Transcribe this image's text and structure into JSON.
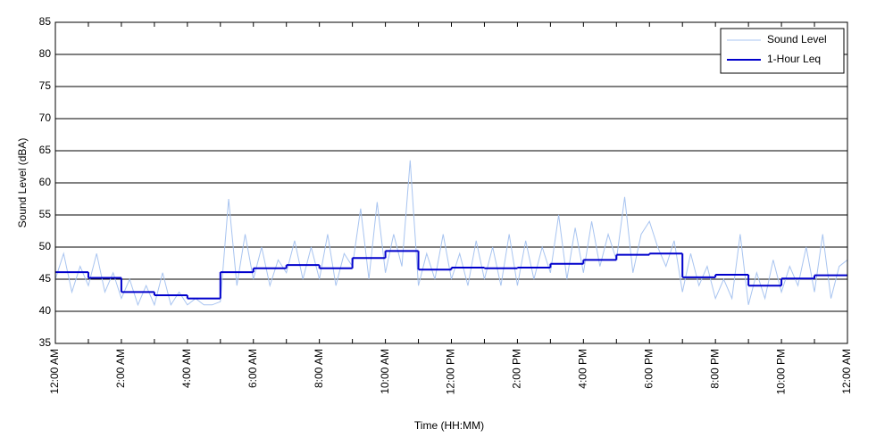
{
  "chart_data": {
    "type": "line",
    "xlabel": "Time (HH:MM)",
    "ylabel": "Sound Level (dBA)",
    "xlim": [
      0,
      24
    ],
    "ylim": [
      35,
      85
    ],
    "xticks": [
      {
        "value": 0,
        "label": "12:00 AM"
      },
      {
        "value": 2,
        "label": "2:00 AM"
      },
      {
        "value": 4,
        "label": "4:00 AM"
      },
      {
        "value": 6,
        "label": "6:00 AM"
      },
      {
        "value": 8,
        "label": "8:00 AM"
      },
      {
        "value": 10,
        "label": "10:00 AM"
      },
      {
        "value": 12,
        "label": "12:00 PM"
      },
      {
        "value": 14,
        "label": "2:00 PM"
      },
      {
        "value": 16,
        "label": "4:00 PM"
      },
      {
        "value": 18,
        "label": "6:00 PM"
      },
      {
        "value": 20,
        "label": "8:00 PM"
      },
      {
        "value": 22,
        "label": "10:00 PM"
      },
      {
        "value": 24,
        "label": "12:00 AM"
      }
    ],
    "xminorticks": [
      1,
      3,
      5,
      7,
      9,
      11,
      13,
      15,
      17,
      19,
      21,
      23
    ],
    "yticks": [
      35,
      40,
      45,
      50,
      55,
      60,
      65,
      70,
      75,
      80,
      85
    ],
    "grid": true,
    "legend": "top-right",
    "series": [
      {
        "name": "Sound Level",
        "color": "#a8c4f0",
        "style": "line",
        "x": [
          0,
          0.25,
          0.5,
          0.75,
          1,
          1.25,
          1.5,
          1.75,
          2,
          2.25,
          2.5,
          2.75,
          3,
          3.25,
          3.5,
          3.75,
          4,
          4.25,
          4.5,
          4.75,
          5,
          5.25,
          5.5,
          5.75,
          6,
          6.25,
          6.5,
          6.75,
          7,
          7.25,
          7.5,
          7.75,
          8,
          8.25,
          8.5,
          8.75,
          9,
          9.25,
          9.5,
          9.75,
          10,
          10.25,
          10.5,
          10.75,
          11,
          11.25,
          11.5,
          11.75,
          12,
          12.25,
          12.5,
          12.75,
          13,
          13.25,
          13.5,
          13.75,
          14,
          14.25,
          14.5,
          14.75,
          15,
          15.25,
          15.5,
          15.75,
          16,
          16.25,
          16.5,
          16.75,
          17,
          17.25,
          17.5,
          17.75,
          18,
          18.25,
          18.5,
          18.75,
          19,
          19.25,
          19.5,
          19.75,
          20,
          20.25,
          20.5,
          20.75,
          21,
          21.25,
          21.5,
          21.75,
          22,
          22.25,
          22.5,
          22.75,
          23,
          23.25,
          23.5,
          23.75,
          24
        ],
        "values": [
          45,
          49,
          43,
          47,
          44,
          49,
          43,
          46,
          42,
          45,
          41,
          44,
          41,
          46,
          41,
          43,
          41,
          42,
          41,
          41,
          41.5,
          57.5,
          44,
          52,
          45,
          50,
          44,
          48,
          46,
          51,
          45,
          50,
          45,
          52,
          44,
          49,
          47,
          56,
          45,
          57,
          46,
          52,
          47,
          63.5,
          44,
          49,
          45,
          52,
          45,
          49,
          44,
          51,
          45,
          50,
          44,
          52,
          44,
          51,
          45,
          50,
          46,
          55,
          45,
          53,
          46,
          54,
          47,
          52,
          48,
          57.8,
          46,
          52,
          54,
          50,
          47,
          51,
          43,
          49,
          44,
          47,
          42,
          45,
          42,
          52,
          41,
          46,
          42,
          48,
          43,
          47,
          44,
          50,
          43,
          52,
          42,
          47,
          48
        ]
      },
      {
        "name": "1-Hour Leq",
        "color": "#0000cc",
        "style": "step",
        "x": [
          0,
          1,
          2,
          3,
          4,
          5,
          6,
          7,
          8,
          9,
          10,
          11,
          12,
          13,
          14,
          15,
          16,
          17,
          18,
          19,
          20,
          21,
          22,
          23
        ],
        "values": [
          46.1,
          45.2,
          43,
          42.5,
          42,
          46.1,
          46.7,
          47.2,
          46.7,
          48.3,
          49.4,
          46.5,
          46.8,
          46.7,
          46.8,
          47.4,
          48,
          48.8,
          49,
          45.3,
          45.7,
          44,
          45.1,
          45.6
        ]
      }
    ]
  }
}
